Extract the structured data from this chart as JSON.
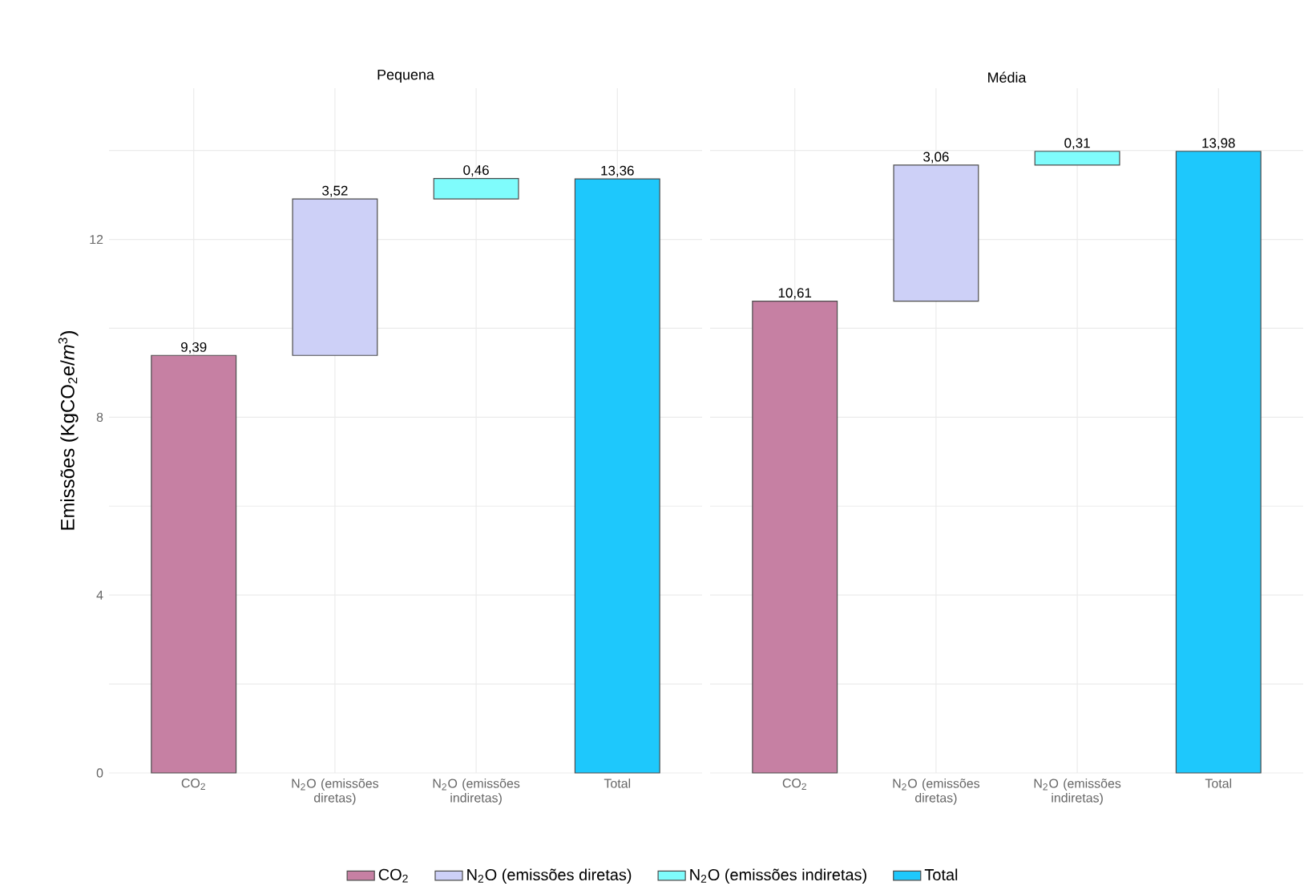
{
  "chart_data": [
    {
      "type": "bar",
      "title": "Pequena",
      "ylabel": "Emissões (KgCO$_{2}$e/*m*$^{3}$)",
      "categories": [
        "CO$_{2}$",
        "N$_{2}$O (emissões diretas)",
        "N$_{2}$O (emissões indiretas)",
        "Total"
      ],
      "series": [
        {
          "name": "CO$_{2}$",
          "color": "#c680a3",
          "values": [
            9.39,
            null,
            null,
            null
          ]
        },
        {
          "name": "N$_{2}$O (emissões diretas)",
          "color": "#cdd0f7",
          "values": [
            null,
            3.52,
            null,
            null
          ],
          "base": [
            null,
            9.39,
            null,
            null
          ]
        },
        {
          "name": "N$_{2}$O (emissões indiretas)",
          "color": "#7ffcfc",
          "values": [
            null,
            null,
            0.46,
            null
          ],
          "base": [
            null,
            null,
            12.91,
            null
          ]
        },
        {
          "name": "Total",
          "color": "#1ec8fc",
          "values": [
            null,
            null,
            null,
            13.36
          ]
        }
      ],
      "value_labels": [
        "9,39",
        "3,52",
        "0,46",
        "13,36"
      ],
      "ylim": [
        0,
        15.4
      ],
      "yticks": [
        0,
        {
          "value": 2,
          "label": null
        },
        4,
        {
          "value": 6,
          "label": null
        },
        8,
        {
          "value": 10,
          "label": null
        },
        12,
        {
          "value": 14,
          "label": null
        }
      ],
      "grid": true,
      "legend": "bottom"
    },
    {
      "type": "bar",
      "title": "Média",
      "categories": [
        "CO$_{2}$",
        "N$_{2}$O (emissões diretas)",
        "N$_{2}$O (emissões indiretas)",
        "Total"
      ],
      "series": [
        {
          "color": "#c680a3",
          "values": [
            10.61,
            null,
            null,
            null
          ]
        },
        {
          "color": "#cdd0f7",
          "values": [
            null,
            3.06,
            null,
            null
          ],
          "base": [
            null,
            10.61,
            null,
            null
          ]
        },
        {
          "color": "#7ffcfc",
          "values": [
            null,
            null,
            0.31,
            null
          ],
          "base": [
            null,
            null,
            13.67,
            null
          ]
        },
        {
          "color": "#1ec8fc",
          "values": [
            null,
            null,
            null,
            13.98
          ]
        }
      ],
      "value_labels": [
        "10,61",
        "3,06",
        "0,31",
        "13,98"
      ],
      "ylim": [
        0,
        15.4
      ],
      "yticks": [
        0,
        {
          "value": 2,
          "label": null
        },
        4,
        {
          "value": 6,
          "label": null
        },
        8,
        {
          "value": 10,
          "label": null
        },
        12,
        {
          "value": 14,
          "label": null
        }
      ],
      "grid": true,
      "tick_labels": "x"
    }
  ]
}
